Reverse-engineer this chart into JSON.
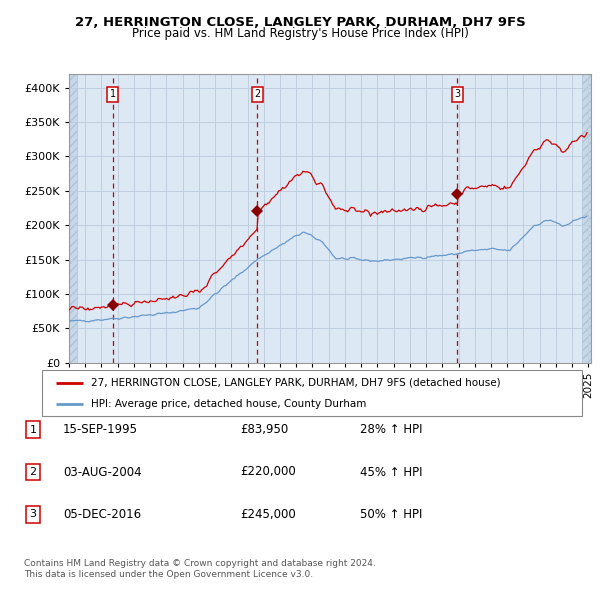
{
  "title1": "27, HERRINGTON CLOSE, LANGLEY PARK, DURHAM, DH7 9FS",
  "title2": "Price paid vs. HM Land Registry's House Price Index (HPI)",
  "legend_property": "27, HERRINGTON CLOSE, LANGLEY PARK, DURHAM, DH7 9FS (detached house)",
  "legend_hpi": "HPI: Average price, detached house, County Durham",
  "sale1_date": "15-SEP-1995",
  "sale1_price": 83950,
  "sale1_hpi": "28% ↑ HPI",
  "sale2_date": "03-AUG-2004",
  "sale2_price": 220000,
  "sale2_hpi": "45% ↑ HPI",
  "sale3_date": "05-DEC-2016",
  "sale3_price": 245000,
  "sale3_hpi": "50% ↑ HPI",
  "footer1": "Contains HM Land Registry data © Crown copyright and database right 2024.",
  "footer2": "This data is licensed under the Open Government Licence v3.0.",
  "hpi_line_color": "#6699cc",
  "property_line_color": "#cc0000",
  "sale_marker_color": "#880000",
  "vline_color": "#cc0000",
  "grid_color": "#c0cfe0",
  "bg_color": "#dde8f5",
  "hatch_bg_color": "#c8d8e8",
  "ylim": [
    0,
    420000
  ],
  "yticks": [
    0,
    50000,
    100000,
    150000,
    200000,
    250000,
    300000,
    350000,
    400000
  ]
}
